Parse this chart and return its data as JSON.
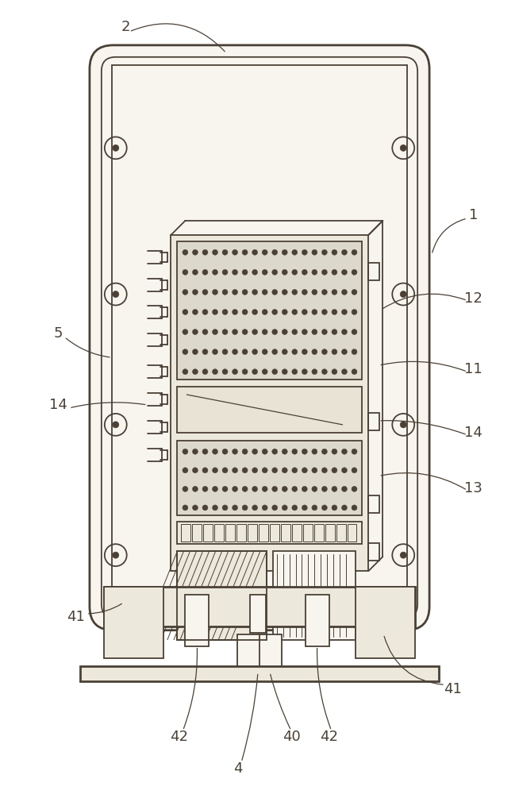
{
  "bg_color": "#ffffff",
  "line_color": "#4a4035",
  "fill_light": "#f8f5ef",
  "fill_medium": "#ede8dc",
  "fill_dark": "#ddd8cc",
  "fig_width": 6.54,
  "fig_height": 10.0,
  "dpi": 100
}
